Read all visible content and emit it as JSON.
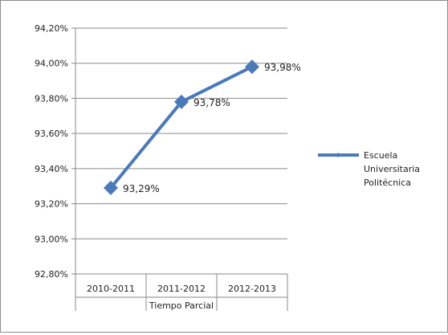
{
  "chart_data": {
    "type": "line",
    "title": "",
    "ylabel": "",
    "xlabel": "",
    "y_ticks": [
      "94,20%",
      "94,00%",
      "93,80%",
      "93,60%",
      "93,40%",
      "93,20%",
      "93,00%",
      "92,80%"
    ],
    "ylim": [
      92.8,
      94.2
    ],
    "group_label": "Tiempo Parcial",
    "categories": [
      "2010-2011",
      "2011-2012",
      "2012-2013"
    ],
    "series": [
      {
        "name": "Escuela Universitaria Politécnica",
        "legend_lines": [
          "Escuela",
          "Universitaria",
          "Politécnica"
        ],
        "color": "#4a7ab8",
        "values": [
          93.29,
          93.78,
          93.98
        ],
        "labels": [
          "93,29%",
          "93,78%",
          "93,98%"
        ]
      }
    ],
    "grid": true,
    "legend_position": "right"
  }
}
